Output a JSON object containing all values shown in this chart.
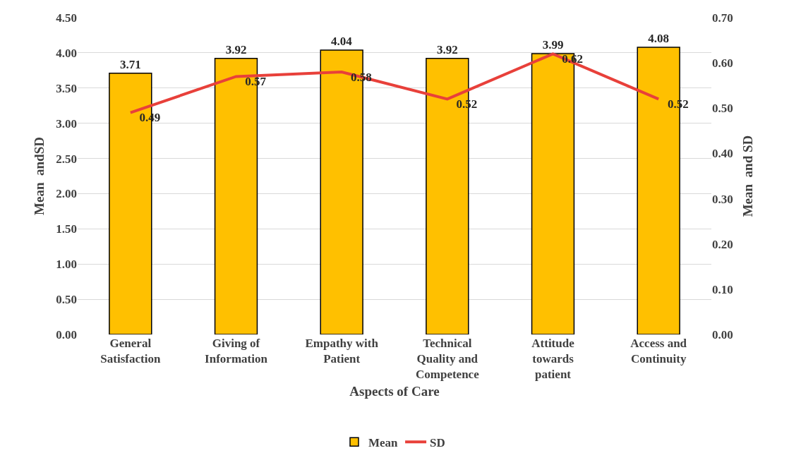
{
  "chart_data": {
    "type": "bar",
    "xlabel": "Aspects of Care",
    "ylabel": "Mean  andSD",
    "y2label": "Mean  and SD",
    "categories": [
      "General Satisfaction",
      "Giving of Information",
      "Empathy with Patient",
      "Technical Quality and Competence",
      "Attitude towards patient",
      "Access and Continuity"
    ],
    "series": [
      {
        "name": "Mean",
        "color": "#ffc000",
        "values": [
          3.71,
          3.92,
          4.04,
          3.92,
          3.99,
          4.08
        ]
      },
      {
        "name": "SD",
        "type": "line",
        "axis": "y2",
        "color": "#e8403a",
        "values": [
          0.49,
          0.57,
          0.58,
          0.52,
          0.62,
          0.52
        ]
      }
    ],
    "ylim": [
      0,
      4.5
    ],
    "yticks": [
      {
        "value": 0,
        "label": "0.00"
      },
      {
        "value": 0.5,
        "label": "0.50"
      },
      {
        "value": 1,
        "label": "1.00"
      },
      {
        "value": 1.5,
        "label": "1.50"
      },
      {
        "value": 2,
        "label": "2.00"
      },
      {
        "value": 2.5,
        "label": "2.50"
      },
      {
        "value": 3,
        "label": "3.00"
      },
      {
        "value": 3.5,
        "label": "3.50"
      },
      {
        "value": 4,
        "label": "4.00"
      },
      {
        "value": 4.5,
        "label": "4.50"
      }
    ],
    "y2lim": [
      0,
      0.7
    ],
    "y2ticks": [
      {
        "value": 0,
        "label": "0.00"
      },
      {
        "value": 0.1,
        "label": "0.10"
      },
      {
        "value": 0.2,
        "label": "0.20"
      },
      {
        "value": 0.3,
        "label": "0.30"
      },
      {
        "value": 0.4,
        "label": "0.40"
      },
      {
        "value": 0.5,
        "label": "0.50"
      },
      {
        "value": 0.6,
        "label": "0.60"
      },
      {
        "value": 0.7,
        "label": "0.70"
      }
    ],
    "data_labels": true,
    "grid": "y",
    "legend": "bottom",
    "marker": "none",
    "line_style": "solid"
  }
}
